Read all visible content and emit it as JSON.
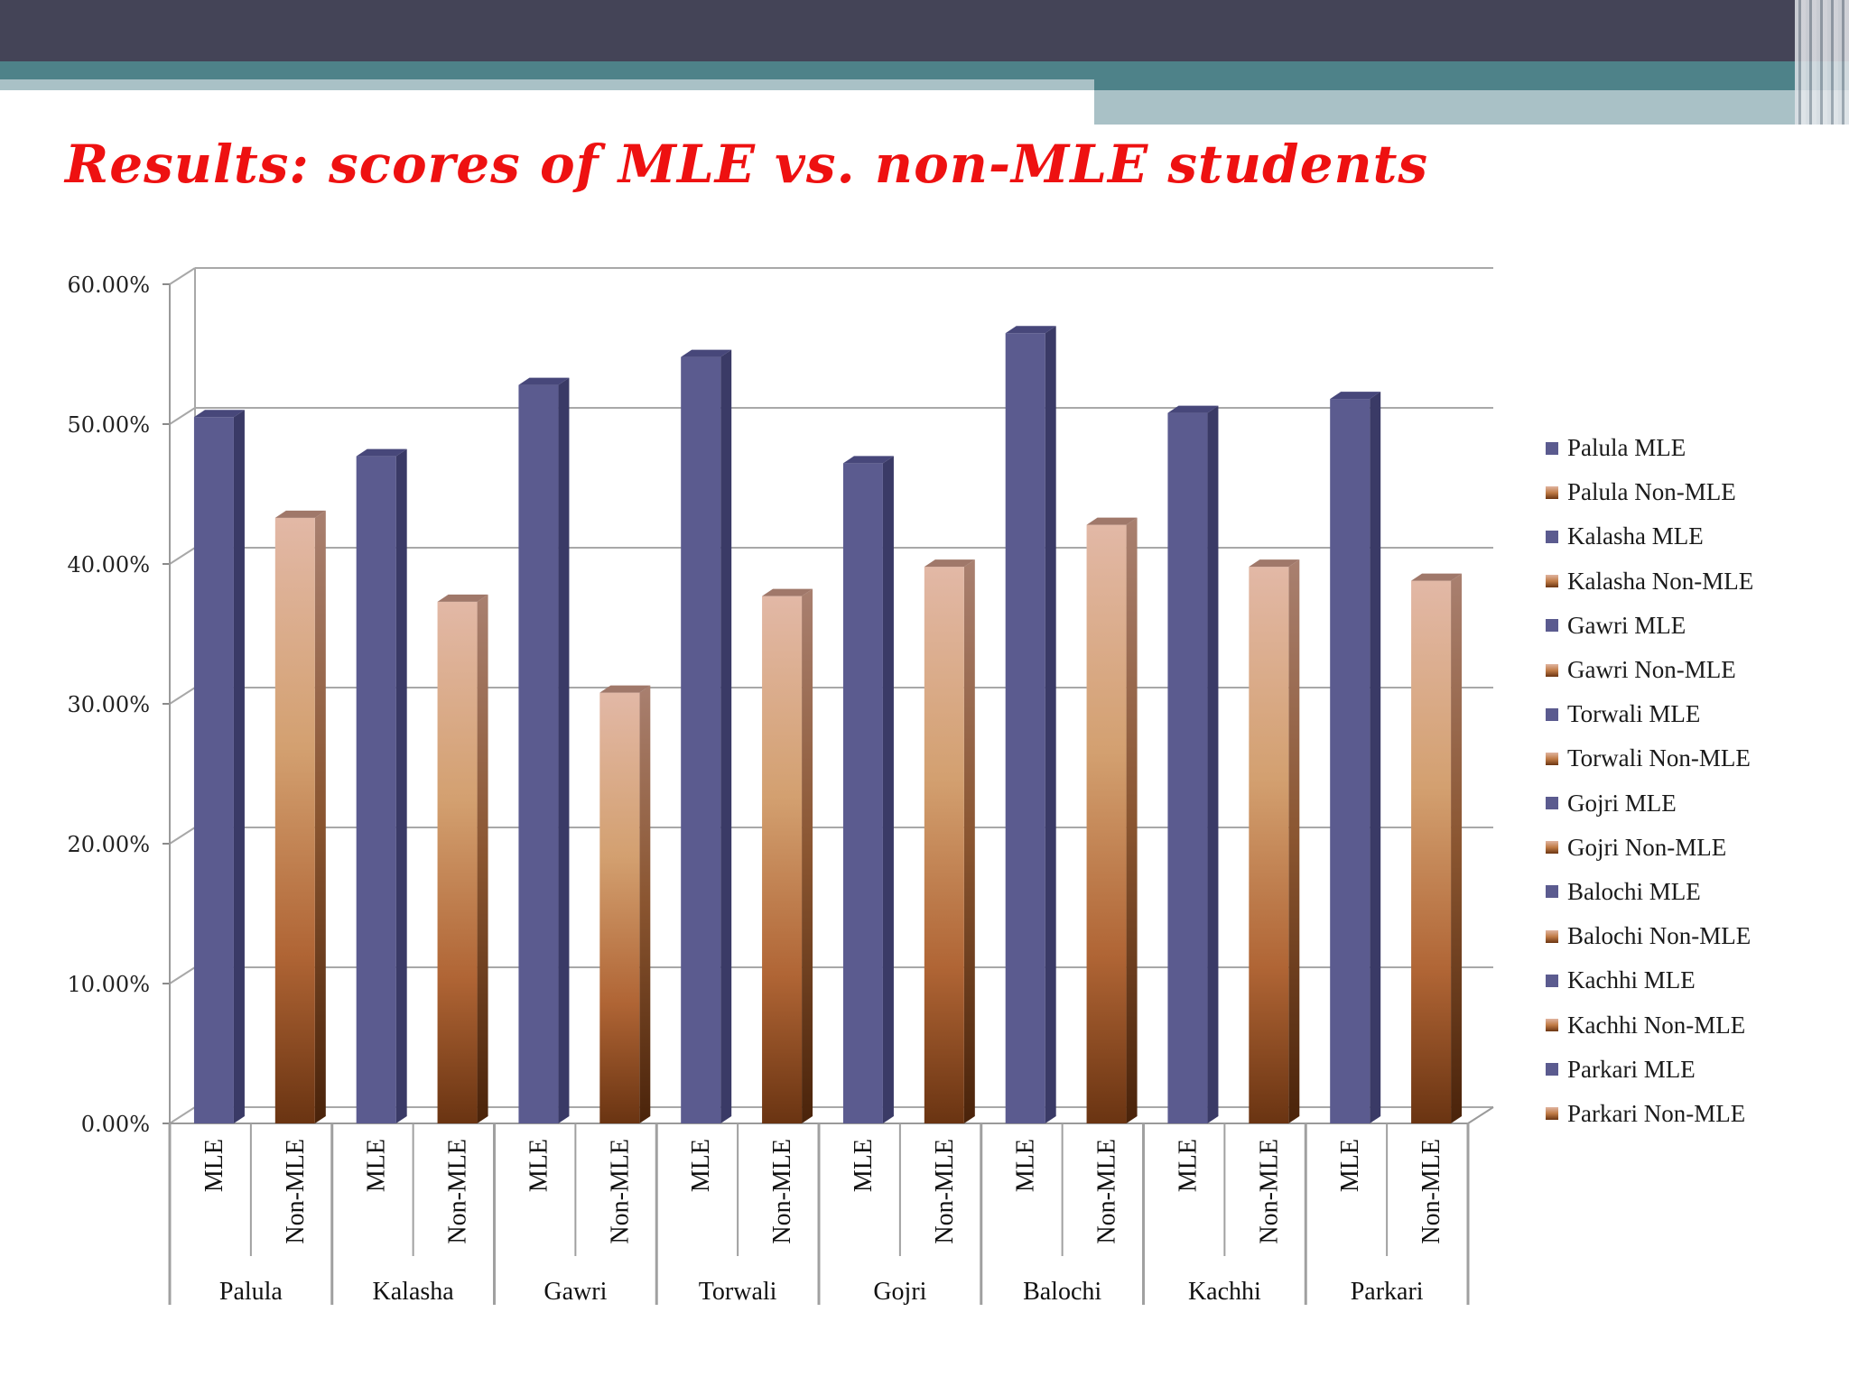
{
  "slide": {
    "title": "Results: scores of MLE vs. non-MLE students"
  },
  "colors": {
    "mle_front": "#5b5b8f",
    "mle_side": "#3a3a66",
    "mle_top": "#47477a",
    "nonmle_light": "#e0b4a0",
    "nonmle_mid": "#c07b46",
    "nonmle_dark": "#6b3512",
    "title": "#ee1111"
  },
  "chart_data": {
    "type": "bar",
    "title": "",
    "xlabel": "",
    "ylabel": "",
    "ylim": [
      0,
      0.6
    ],
    "yticks": [
      "0.00%",
      "10.00%",
      "20.00%",
      "30.00%",
      "40.00%",
      "50.00%",
      "60.00%"
    ],
    "grid": true,
    "legend_position": "right",
    "groups": [
      "Palula",
      "Kalasha",
      "Gawri",
      "Torwali",
      "Gojri",
      "Balochi",
      "Kachhi",
      "Parkari"
    ],
    "subcategories": [
      "MLE",
      "Non-MLE"
    ],
    "series": [
      {
        "name": "Palula MLE",
        "value": 0.505
      },
      {
        "name": "Palula Non-MLE",
        "value": 0.433
      },
      {
        "name": "Kalasha MLE",
        "value": 0.477
      },
      {
        "name": "Kalasha Non-MLE",
        "value": 0.373
      },
      {
        "name": "Gawri MLE",
        "value": 0.528
      },
      {
        "name": "Gawri Non-MLE",
        "value": 0.308
      },
      {
        "name": "Torwali MLE",
        "value": 0.548
      },
      {
        "name": "Torwali Non-MLE",
        "value": 0.377
      },
      {
        "name": "Gojri MLE",
        "value": 0.472
      },
      {
        "name": "Gojri Non-MLE",
        "value": 0.398
      },
      {
        "name": "Balochi MLE",
        "value": 0.565
      },
      {
        "name": "Balochi Non-MLE",
        "value": 0.428
      },
      {
        "name": "Kachhi MLE",
        "value": 0.508
      },
      {
        "name": "Kachhi Non-MLE",
        "value": 0.398
      },
      {
        "name": "Parkari MLE",
        "value": 0.518
      },
      {
        "name": "Parkari Non-MLE",
        "value": 0.388
      }
    ]
  }
}
